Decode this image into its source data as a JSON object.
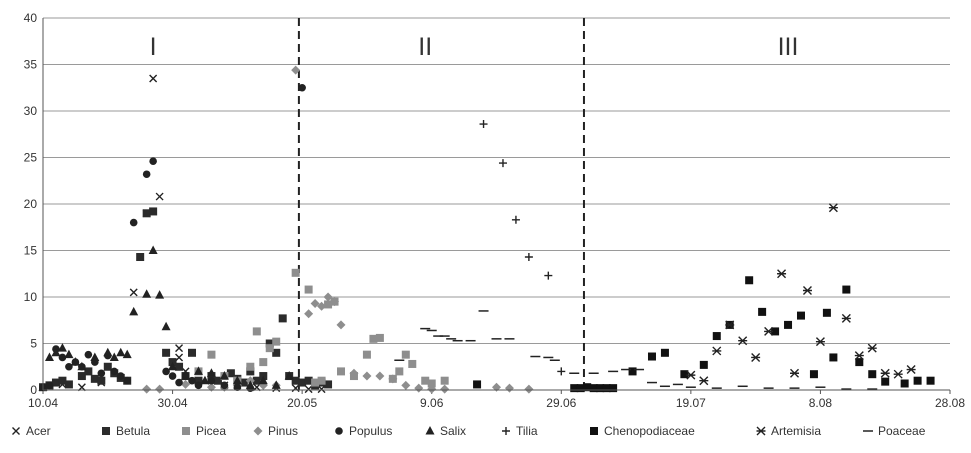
{
  "chart_data": {
    "type": "scatter",
    "ylim": [
      0,
      40
    ],
    "yticks": [
      0,
      5,
      10,
      15,
      20,
      25,
      30,
      35,
      40
    ],
    "x_dates": [
      "10.04",
      "30.04",
      "20.05",
      "9.06",
      "29.06",
      "19.07",
      "8.08",
      "28.08"
    ],
    "x_tick_pos": [
      0,
      20,
      40,
      60,
      80,
      100,
      120,
      140
    ],
    "x_range": [
      0,
      140
    ],
    "dividers_x": [
      39.5,
      83.5
    ],
    "periods": [
      {
        "label": "I",
        "x": 17
      },
      {
        "label": "II",
        "x": 59
      },
      {
        "label": "III",
        "x": 115
      }
    ],
    "grid": "horizontal",
    "legend_position": "bottom",
    "series": [
      {
        "name": "Acer",
        "marker": "x",
        "color": "#222222",
        "points": [
          [
            1,
            0.5
          ],
          [
            3,
            0.6
          ],
          [
            6,
            0.3
          ],
          [
            9,
            0.8
          ],
          [
            14,
            10.5
          ],
          [
            16,
            19
          ],
          [
            17,
            33.5
          ],
          [
            18,
            20.8
          ],
          [
            21,
            4.5
          ],
          [
            21,
            3.5
          ],
          [
            22,
            2
          ],
          [
            24,
            1
          ],
          [
            26,
            1
          ],
          [
            28,
            0.5
          ],
          [
            30,
            0.5
          ],
          [
            33,
            0.3
          ],
          [
            36,
            0.2
          ],
          [
            39,
            0.2
          ],
          [
            41,
            0.1
          ],
          [
            43,
            0.1
          ]
        ]
      },
      {
        "name": "Betula",
        "marker": "square",
        "color": "#2b2b2b",
        "points": [
          [
            0,
            0.3
          ],
          [
            1,
            0.5
          ],
          [
            2,
            0.8
          ],
          [
            3,
            1
          ],
          [
            4,
            0.6
          ],
          [
            6,
            1.5
          ],
          [
            7,
            2
          ],
          [
            8,
            1.2
          ],
          [
            9,
            1
          ],
          [
            10,
            2.5
          ],
          [
            11,
            1.8
          ],
          [
            12,
            1.3
          ],
          [
            13,
            1
          ],
          [
            15,
            14.3
          ],
          [
            16,
            19
          ],
          [
            17,
            19.2
          ],
          [
            19,
            4
          ],
          [
            20,
            3
          ],
          [
            21,
            2.5
          ],
          [
            22,
            1.5
          ],
          [
            23,
            4
          ],
          [
            24,
            1
          ],
          [
            26,
            1.5
          ],
          [
            27,
            1
          ],
          [
            29,
            1.8
          ],
          [
            30,
            1.2
          ],
          [
            31,
            0.8
          ],
          [
            32,
            2
          ],
          [
            33,
            1
          ],
          [
            34,
            1.5
          ],
          [
            35,
            5
          ],
          [
            36,
            4
          ],
          [
            37,
            7.7
          ],
          [
            38,
            1.5
          ],
          [
            39,
            1
          ],
          [
            40,
            0.8
          ],
          [
            41,
            1
          ],
          [
            42,
            0.5
          ],
          [
            43,
            0.8
          ],
          [
            44,
            0.6
          ]
        ]
      },
      {
        "name": "Picea",
        "marker": "square",
        "color": "#8e8e8e",
        "points": [
          [
            24,
            2
          ],
          [
            26,
            3.8
          ],
          [
            28,
            1.5
          ],
          [
            30,
            1
          ],
          [
            32,
            2.5
          ],
          [
            33,
            6.3
          ],
          [
            34,
            3
          ],
          [
            35,
            4.5
          ],
          [
            36,
            5.2
          ],
          [
            39,
            12.6
          ],
          [
            41,
            10.8
          ],
          [
            42,
            0.8
          ],
          [
            43,
            1
          ],
          [
            44,
            9.2
          ],
          [
            45,
            9.5
          ],
          [
            46,
            2
          ],
          [
            48,
            1.5
          ],
          [
            50,
            3.8
          ],
          [
            51,
            5.5
          ],
          [
            52,
            5.6
          ],
          [
            54,
            1.2
          ],
          [
            55,
            2
          ],
          [
            56,
            3.8
          ],
          [
            57,
            2.8
          ],
          [
            59,
            1
          ],
          [
            60,
            0.7
          ],
          [
            62,
            1
          ]
        ]
      },
      {
        "name": "Pinus",
        "marker": "diamond",
        "color": "#8e8e8e",
        "points": [
          [
            16,
            0.1
          ],
          [
            18,
            0.1
          ],
          [
            22,
            0.6
          ],
          [
            26,
            0.3
          ],
          [
            28,
            0.3
          ],
          [
            30,
            0.5
          ],
          [
            32,
            1
          ],
          [
            34,
            0.5
          ],
          [
            36,
            0.5
          ],
          [
            39,
            34.4
          ],
          [
            41,
            8.2
          ],
          [
            42,
            9.3
          ],
          [
            43,
            9
          ],
          [
            44,
            10
          ],
          [
            45,
            9.5
          ],
          [
            46,
            7
          ],
          [
            48,
            1.8
          ],
          [
            50,
            1.5
          ],
          [
            52,
            1.5
          ],
          [
            54,
            1.2
          ],
          [
            56,
            0.5
          ],
          [
            58,
            0.2
          ],
          [
            60,
            0.1
          ],
          [
            62,
            0.1
          ],
          [
            70,
            0.3
          ],
          [
            72,
            0.2
          ],
          [
            75,
            0.1
          ]
        ]
      },
      {
        "name": "Populus",
        "marker": "circle",
        "color": "#222222",
        "points": [
          [
            0,
            0.3
          ],
          [
            1,
            0.5
          ],
          [
            2,
            4.4
          ],
          [
            3,
            3.5
          ],
          [
            4,
            2.5
          ],
          [
            5,
            3
          ],
          [
            6,
            2.5
          ],
          [
            7,
            3.8
          ],
          [
            8,
            3
          ],
          [
            9,
            1.8
          ],
          [
            10,
            3.7
          ],
          [
            11,
            2
          ],
          [
            12,
            1.5
          ],
          [
            13,
            1
          ],
          [
            14,
            18
          ],
          [
            16,
            23.2
          ],
          [
            17,
            24.6
          ],
          [
            19,
            2
          ],
          [
            20,
            1.5
          ],
          [
            21,
            0.8
          ],
          [
            22,
            1.5
          ],
          [
            23,
            1
          ],
          [
            24,
            0.5
          ],
          [
            26,
            1
          ],
          [
            28,
            0.5
          ],
          [
            30,
            0.3
          ],
          [
            32,
            0.2
          ],
          [
            40,
            32.5
          ]
        ]
      },
      {
        "name": "Salix",
        "marker": "triangle",
        "color": "#222222",
        "points": [
          [
            0,
            0.3
          ],
          [
            1,
            3.5
          ],
          [
            2,
            4
          ],
          [
            3,
            4.5
          ],
          [
            4,
            3.8
          ],
          [
            5,
            3
          ],
          [
            6,
            2.5
          ],
          [
            8,
            3.5
          ],
          [
            10,
            4
          ],
          [
            11,
            3.5
          ],
          [
            12,
            4
          ],
          [
            13,
            3.8
          ],
          [
            14,
            8.4
          ],
          [
            16,
            10.3
          ],
          [
            17,
            15
          ],
          [
            18,
            10.2
          ],
          [
            19,
            6.8
          ],
          [
            20,
            2.5
          ],
          [
            22,
            1.5
          ],
          [
            24,
            2
          ],
          [
            25,
            1
          ],
          [
            26,
            1.8
          ],
          [
            28,
            1.5
          ],
          [
            30,
            1
          ],
          [
            32,
            0.5
          ],
          [
            34,
            1
          ],
          [
            36,
            0.5
          ],
          [
            38,
            1.5
          ]
        ]
      },
      {
        "name": "Tilia",
        "marker": "plus",
        "color": "#222222",
        "points": [
          [
            68,
            28.6
          ],
          [
            71,
            24.4
          ],
          [
            73,
            18.3
          ],
          [
            75,
            14.3
          ],
          [
            78,
            12.3
          ],
          [
            80,
            2
          ]
        ]
      },
      {
        "name": "Chenopodiaceae",
        "marker": "square",
        "color": "#111111",
        "points": [
          [
            67,
            0.6
          ],
          [
            82,
            0.2
          ],
          [
            83,
            0.2
          ],
          [
            84,
            0.3
          ],
          [
            85,
            0.2
          ],
          [
            86,
            0.2
          ],
          [
            87,
            0.2
          ],
          [
            88,
            0.2
          ],
          [
            91,
            2
          ],
          [
            94,
            3.6
          ],
          [
            96,
            4
          ],
          [
            99,
            1.7
          ],
          [
            102,
            2.7
          ],
          [
            104,
            5.8
          ],
          [
            106,
            7
          ],
          [
            109,
            11.8
          ],
          [
            111,
            8.4
          ],
          [
            113,
            6.3
          ],
          [
            115,
            7
          ],
          [
            117,
            8
          ],
          [
            119,
            1.7
          ],
          [
            121,
            8.3
          ],
          [
            122,
            3.5
          ],
          [
            124,
            10.8
          ],
          [
            126,
            3
          ],
          [
            128,
            1.7
          ],
          [
            130,
            0.9
          ],
          [
            133,
            0.7
          ],
          [
            135,
            1
          ],
          [
            137,
            1
          ]
        ]
      },
      {
        "name": "Artemisia",
        "marker": "asterisk",
        "color": "#222222",
        "points": [
          [
            100,
            1.6
          ],
          [
            102,
            1
          ],
          [
            104,
            4.2
          ],
          [
            106,
            7
          ],
          [
            108,
            5.3
          ],
          [
            110,
            3.5
          ],
          [
            112,
            6.3
          ],
          [
            114,
            12.5
          ],
          [
            116,
            1.8
          ],
          [
            118,
            10.7
          ],
          [
            120,
            5.2
          ],
          [
            122,
            19.6
          ],
          [
            124,
            7.7
          ],
          [
            126,
            3.7
          ],
          [
            128,
            4.5
          ],
          [
            130,
            1.8
          ],
          [
            132,
            1.7
          ],
          [
            134,
            2.2
          ]
        ]
      },
      {
        "name": "Poaceae",
        "marker": "dash",
        "color": "#222222",
        "points": [
          [
            55,
            3.2
          ],
          [
            59,
            6.6
          ],
          [
            60,
            6.4
          ],
          [
            61,
            5.8
          ],
          [
            62,
            5.8
          ],
          [
            63,
            5.5
          ],
          [
            64,
            5.3
          ],
          [
            66,
            5.3
          ],
          [
            68,
            8.5
          ],
          [
            70,
            5.5
          ],
          [
            72,
            5.5
          ],
          [
            76,
            3.6
          ],
          [
            78,
            3.5
          ],
          [
            79,
            3.2
          ],
          [
            82,
            1.8
          ],
          [
            85,
            1.8
          ],
          [
            88,
            2
          ],
          [
            90,
            2.2
          ],
          [
            92,
            2.2
          ],
          [
            94,
            0.8
          ],
          [
            96,
            0.4
          ],
          [
            98,
            0.6
          ],
          [
            100,
            0.3
          ],
          [
            104,
            0.2
          ],
          [
            108,
            0.4
          ],
          [
            112,
            0.2
          ],
          [
            116,
            0.2
          ],
          [
            120,
            0.3
          ],
          [
            124,
            0.1
          ],
          [
            128,
            0.1
          ]
        ]
      }
    ]
  }
}
